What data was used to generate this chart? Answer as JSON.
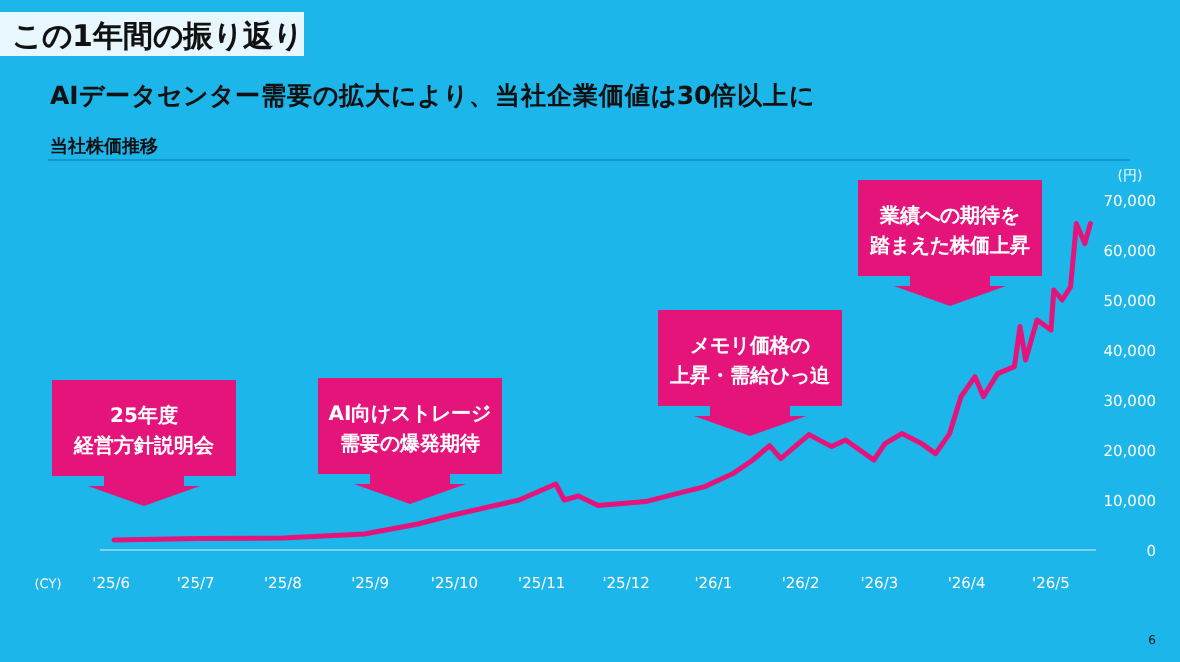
{
  "chart_data": {
    "type": "line",
    "title": "AIデータセンター需要の拡大により、当社企業価値は30倍以上に",
    "subtitle": "当社株価推移",
    "xlabel": "(CY)",
    "ylabel": "(円)",
    "x": [
      "2025-06-02",
      "2025-07-02",
      "2025-08-01",
      "2025-08-30",
      "2025-09-18",
      "2025-09-29",
      "2025-10-24",
      "2025-11-06",
      "2025-11-09",
      "2025-11-14",
      "2025-11-21",
      "2025-12-08",
      "2025-12-19",
      "2025-12-29",
      "2026-01-08",
      "2026-01-15",
      "2026-01-21",
      "2026-01-25",
      "2026-02-04",
      "2026-02-12",
      "2026-02-17",
      "2026-02-27",
      "2026-03-03",
      "2026-03-09",
      "2026-03-16",
      "2026-03-21",
      "2026-03-26",
      "2026-03-30",
      "2026-04-04",
      "2026-04-07",
      "2026-04-12",
      "2026-04-18",
      "2026-04-20",
      "2026-04-22",
      "2026-04-26",
      "2026-05-01",
      "2026-05-02",
      "2026-05-05",
      "2026-05-08",
      "2026-05-10",
      "2026-05-13",
      "2026-05-15"
    ],
    "series": [
      {
        "color": "#e4147b",
        "values": [
          2000,
          2300,
          2400,
          3200,
          5200,
          6800,
          10000,
          13200,
          10000,
          10800,
          8900,
          9700,
          11300,
          12700,
          15300,
          18000,
          20900,
          18300,
          23100,
          20700,
          22000,
          18000,
          21300,
          23300,
          21300,
          19300,
          23300,
          30700,
          34700,
          30700,
          35300,
          36700,
          44700,
          38000,
          46000,
          44000,
          52000,
          50000,
          52700,
          65300,
          61300,
          65300
        ]
      }
    ],
    "xlim": [
      "2025-05-28",
      "2026-05-17"
    ],
    "xticks": [
      {
        "value": "2025-06-01",
        "label": "'25/6"
      },
      {
        "value": "2025-07-01",
        "label": "'25/7"
      },
      {
        "value": "2025-08-01",
        "label": "'25/8"
      },
      {
        "value": "2025-09-01",
        "label": "'25/9"
      },
      {
        "value": "2025-10-01",
        "label": "'25/10"
      },
      {
        "value": "2025-11-01",
        "label": "'25/11"
      },
      {
        "value": "2025-12-01",
        "label": "'25/12"
      },
      {
        "value": "2026-01-01",
        "label": "'26/1"
      },
      {
        "value": "2026-02-01",
        "label": "'26/2"
      },
      {
        "value": "2026-03-01",
        "label": "'26/3"
      },
      {
        "value": "2026-04-01",
        "label": "'26/4"
      },
      {
        "value": "2026-05-01",
        "label": "'26/5"
      }
    ],
    "ylim": [
      0,
      70000
    ],
    "yticks": [
      0,
      {
        "value": 10000,
        "label": "10,000"
      },
      {
        "value": 20000,
        "label": "20,000"
      },
      {
        "value": 30000,
        "label": "30,000"
      },
      {
        "value": 40000,
        "label": "40,000"
      },
      {
        "value": 50000,
        "label": "50,000"
      },
      {
        "value": 60000,
        "label": "60,000"
      },
      {
        "value": 70000,
        "label": "70,000"
      }
    ],
    "annotations": [
      "この1年間の振り返り",
      "25年度経営方針説明会",
      "AI向けストレージ需要の爆発期待",
      "メモリ価格の上昇・需給ひっ迫",
      "業績への期待を踏まえた株価上昇",
      "6"
    ]
  }
}
